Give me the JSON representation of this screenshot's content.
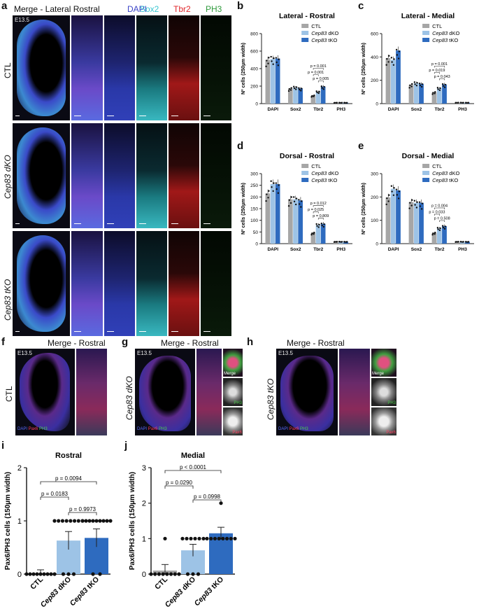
{
  "panels": {
    "a": "a",
    "b": "b",
    "c": "c",
    "d": "d",
    "e": "e",
    "f": "f",
    "g": "g",
    "h": "h",
    "i": "i",
    "j": "j"
  },
  "panel_a": {
    "title": "Merge - Lateral Rostral",
    "channels": [
      {
        "label": "DAPI",
        "color": "#3b44c8"
      },
      {
        "label": "Sox2",
        "color": "#39c6d0"
      },
      {
        "label": "Tbr2",
        "color": "#e0262a"
      },
      {
        "label": "PH3",
        "color": "#2f9a3c"
      }
    ],
    "age": "E13.5",
    "rows": [
      "CTL",
      "Cep83 dKO",
      "Cep83 tKO"
    ]
  },
  "legend": {
    "ctl": "CTL",
    "dko": "Cep83 dKO",
    "tko": "Cep83 tKO",
    "colors": {
      "ctl": "#a6a6a6",
      "dko": "#9dc3e6",
      "tko": "#2e6bbf"
    }
  },
  "panel_f": {
    "title": "Merge - Rostral",
    "age": "E13.5",
    "row": "CTL",
    "stain": [
      "DAPI",
      "Pax6",
      "PH3"
    ]
  },
  "panel_g": {
    "title": "Merge - Rostral",
    "age": "E13.5",
    "row": "Cep83 dKO",
    "stain": [
      "DAPI",
      "Pax6",
      "PH3"
    ],
    "insets": [
      "Merge",
      "PH3",
      "Pax6"
    ]
  },
  "panel_h": {
    "title": "Merge - Rostral",
    "age": "E13.5",
    "row": "Cep83 tKO",
    "stain": [
      "DAPI",
      "Pax6",
      "PH3"
    ],
    "insets": [
      "Merge",
      "PH3",
      "Pax6"
    ]
  },
  "chart_data": [
    {
      "id": "b",
      "type": "bar",
      "title": "Lateral - Rostral",
      "ylabel": "Nº cells (250µm width)",
      "ylim": [
        0,
        800
      ],
      "yticks": [
        0,
        200,
        400,
        600,
        800
      ],
      "categories": [
        "DAPI",
        "Sox2",
        "Tbr2",
        "PH3"
      ],
      "series": [
        {
          "name": "CTL",
          "values": [
            500,
            170,
            90,
            10
          ]
        },
        {
          "name": "Cep83 dKO",
          "values": [
            510,
            185,
            135,
            10
          ]
        },
        {
          "name": "Cep83 tKO",
          "values": [
            515,
            175,
            195,
            10
          ]
        }
      ],
      "annotations": [
        "p = 0.001",
        "p = 0.001",
        "p = 0.005"
      ]
    },
    {
      "id": "c",
      "type": "bar",
      "title": "Lateral - Medial",
      "ylabel": "Nº cells (250µm width)",
      "ylim": [
        0,
        600
      ],
      "yticks": [
        0,
        200,
        400,
        600
      ],
      "categories": [
        "DAPI",
        "Sox2",
        "Tbr2",
        "PH3"
      ],
      "series": [
        {
          "name": "CTL",
          "values": [
            390,
            160,
            95,
            8
          ]
        },
        {
          "name": "Cep83 dKO",
          "values": [
            375,
            175,
            130,
            8
          ]
        },
        {
          "name": "Cep83 tKO",
          "values": [
            455,
            170,
            165,
            8
          ]
        }
      ],
      "annotations": [
        "p = 0.001",
        "p = 0.019",
        "p = 0.043"
      ]
    },
    {
      "id": "d",
      "type": "bar",
      "title": "Dorsal - Rostral",
      "ylabel": "Nº cells (250µm width)",
      "ylim": [
        0,
        300
      ],
      "yticks": [
        0,
        50,
        100,
        150,
        200,
        250,
        300
      ],
      "categories": [
        "DAPI",
        "Sox2",
        "Tbr2",
        "PH3"
      ],
      "series": [
        {
          "name": "CTL",
          "values": [
            215,
            190,
            45,
            8
          ]
        },
        {
          "name": "Cep83 dKO",
          "values": [
            255,
            190,
            80,
            8
          ]
        },
        {
          "name": "Cep83 tKO",
          "values": [
            255,
            185,
            85,
            8
          ]
        }
      ],
      "annotations": [
        "p = 0.012",
        "p = 0.025",
        "p = 0.809"
      ]
    },
    {
      "id": "e",
      "type": "bar",
      "title": "Dorsal - Medial",
      "ylabel": "Nº cells (250µm width)",
      "ylim": [
        0,
        300
      ],
      "yticks": [
        0,
        100,
        200,
        300
      ],
      "categories": [
        "DAPI",
        "Sox2",
        "Tbr2",
        "PH3"
      ],
      "series": [
        {
          "name": "CTL",
          "values": [
            198,
            178,
            45,
            8
          ]
        },
        {
          "name": "Cep83 dKO",
          "values": [
            235,
            175,
            65,
            8
          ]
        },
        {
          "name": "Cep83 tKO",
          "values": [
            228,
            175,
            75,
            8
          ]
        }
      ],
      "annotations": [
        "p = 0.004",
        "p = 0.033",
        "p = 0.508"
      ]
    },
    {
      "id": "i",
      "type": "bar",
      "title": "Rostral",
      "ylabel": "Pax6/PH3 cells (150µm width)",
      "ylim": [
        0,
        2
      ],
      "yticks": [
        0,
        1,
        2
      ],
      "categories": [
        "CTL",
        "Cep83 dKO",
        "Cep83 tKO"
      ],
      "values": [
        0,
        0.63,
        0.68
      ],
      "points": [
        [
          0,
          0,
          0,
          0,
          0,
          0,
          0,
          0,
          0
        ],
        [
          0,
          0,
          0,
          1,
          1,
          1,
          1,
          1,
          1,
          1,
          1
        ],
        [
          0,
          0,
          1,
          1,
          1,
          1,
          1,
          1,
          1,
          1,
          1
        ]
      ],
      "annotations": [
        "p = 0.0094",
        "p = 0.0183",
        "p = 0.9973"
      ]
    },
    {
      "id": "j",
      "type": "bar",
      "title": "Medial",
      "ylabel": "Pax6/PH3 cells (150µm width)",
      "ylim": [
        0,
        3
      ],
      "yticks": [
        0,
        1,
        2,
        3
      ],
      "categories": [
        "CTL",
        "Cep83 dKO",
        "Cep83 tKO"
      ],
      "values": [
        0.1,
        0.67,
        1.15
      ],
      "points": [
        [
          0,
          0,
          0,
          0,
          0,
          0,
          0,
          0,
          1
        ],
        [
          0,
          0,
          0,
          1,
          1,
          1,
          1,
          1,
          1
        ],
        [
          1,
          1,
          1,
          1,
          1,
          1,
          1,
          1,
          2
        ]
      ],
      "annotations": [
        "p < 0.0001",
        "p = 0.0290",
        "p = 0.0998"
      ]
    }
  ]
}
